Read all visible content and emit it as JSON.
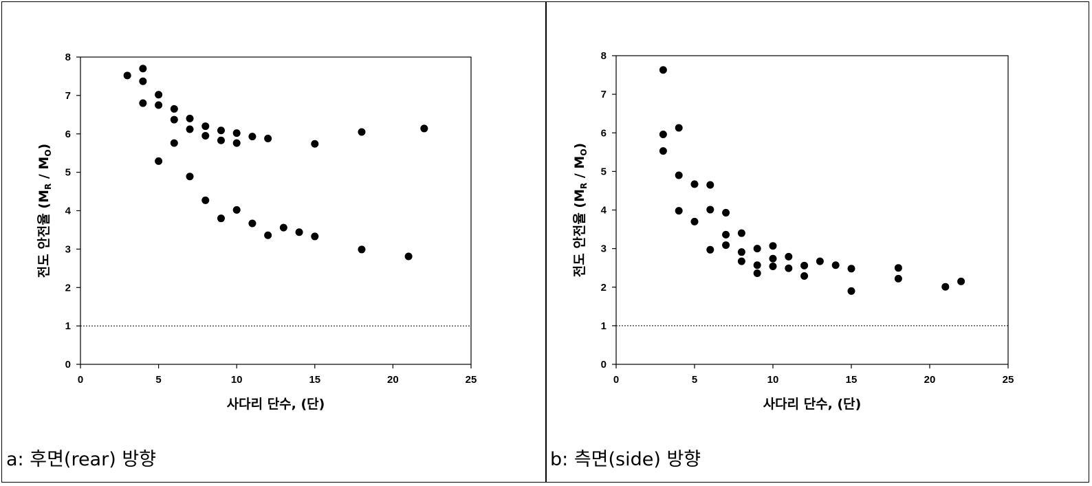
{
  "chart_data": [
    {
      "type": "scatter",
      "panel_caption": "a: 후면(rear)  방향",
      "xlabel": "사다리 단수, (단)",
      "ylabel": "전도 안전율 (M",
      "ylabel_sub1": "R",
      "ylabel_mid": " / M",
      "ylabel_sub2": "O",
      "ylabel_end": ")",
      "xlim": [
        0,
        25
      ],
      "ylim": [
        0,
        8
      ],
      "xticks": [
        0,
        5,
        10,
        15,
        20,
        25
      ],
      "yticks": [
        0,
        1,
        2,
        3,
        4,
        5,
        6,
        7,
        8
      ],
      "reference_line": 1,
      "grid": false,
      "marker_color": "#000000",
      "points": [
        [
          3,
          7.52
        ],
        [
          4,
          7.7
        ],
        [
          4,
          7.37
        ],
        [
          4,
          6.8
        ],
        [
          5,
          7.02
        ],
        [
          5,
          6.75
        ],
        [
          5,
          5.29
        ],
        [
          6,
          6.65
        ],
        [
          6,
          6.37
        ],
        [
          6,
          5.76
        ],
        [
          7,
          6.4
        ],
        [
          7,
          6.12
        ],
        [
          7,
          4.89
        ],
        [
          8,
          6.2
        ],
        [
          8,
          5.95
        ],
        [
          8,
          4.27
        ],
        [
          9,
          6.09
        ],
        [
          9,
          5.83
        ],
        [
          9,
          3.8
        ],
        [
          10,
          6.02
        ],
        [
          10,
          5.76
        ],
        [
          10,
          4.02
        ],
        [
          11,
          5.93
        ],
        [
          11,
          3.67
        ],
        [
          12,
          5.88
        ],
        [
          12,
          3.36
        ],
        [
          13,
          3.56
        ],
        [
          14,
          3.44
        ],
        [
          15,
          5.74
        ],
        [
          15,
          3.33
        ],
        [
          18,
          6.05
        ],
        [
          18,
          2.99
        ],
        [
          21,
          2.81
        ],
        [
          22,
          6.14
        ]
      ]
    },
    {
      "type": "scatter",
      "panel_caption": "b: 측면(side)  방향",
      "xlabel": "사다리 단수, (단)",
      "ylabel": "전도 안전율 (M",
      "ylabel_sub1": "R",
      "ylabel_mid": " / M",
      "ylabel_sub2": "O",
      "ylabel_end": ")",
      "xlim": [
        0,
        25
      ],
      "ylim": [
        0,
        8
      ],
      "xticks": [
        0,
        5,
        10,
        15,
        20,
        25
      ],
      "yticks": [
        0,
        1,
        2,
        3,
        4,
        5,
        6,
        7,
        8
      ],
      "reference_line": 1,
      "grid": false,
      "marker_color": "#000000",
      "points": [
        [
          3,
          7.63
        ],
        [
          3,
          5.96
        ],
        [
          3,
          5.53
        ],
        [
          4,
          6.13
        ],
        [
          4,
          4.9
        ],
        [
          4,
          3.98
        ],
        [
          5,
          4.67
        ],
        [
          5,
          3.7
        ],
        [
          6,
          4.65
        ],
        [
          6,
          4.01
        ],
        [
          6,
          2.97
        ],
        [
          7,
          3.93
        ],
        [
          7,
          3.36
        ],
        [
          7,
          3.09
        ],
        [
          8,
          3.4
        ],
        [
          8,
          2.91
        ],
        [
          8,
          2.67
        ],
        [
          9,
          3.0
        ],
        [
          9,
          2.57
        ],
        [
          9,
          2.36
        ],
        [
          10,
          3.07
        ],
        [
          10,
          2.74
        ],
        [
          10,
          2.54
        ],
        [
          11,
          2.79
        ],
        [
          11,
          2.49
        ],
        [
          12,
          2.56
        ],
        [
          12,
          2.29
        ],
        [
          13,
          2.67
        ],
        [
          14,
          2.57
        ],
        [
          15,
          2.48
        ],
        [
          15,
          1.9
        ],
        [
          18,
          2.5
        ],
        [
          18,
          2.22
        ],
        [
          21,
          2.01
        ],
        [
          22,
          2.15
        ]
      ]
    }
  ]
}
